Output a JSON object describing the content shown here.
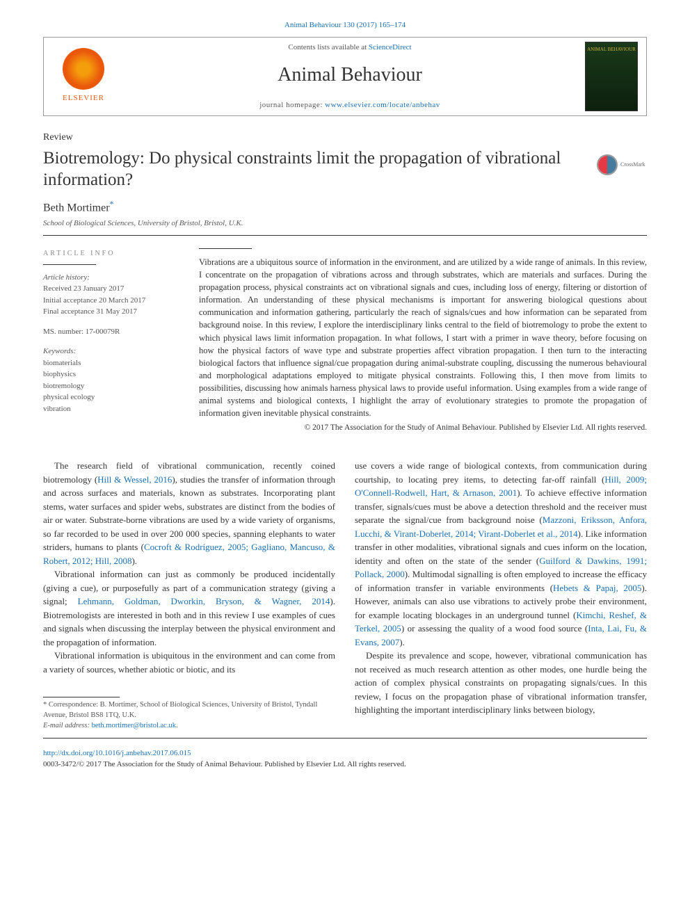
{
  "header": {
    "citation": "Animal Behaviour 130 (2017) 165–174",
    "contents_prefix": "Contents lists available at ",
    "contents_link": "ScienceDirect",
    "journal_name": "Animal Behaviour",
    "homepage_prefix": "journal homepage: ",
    "homepage_link": "www.elsevier.com/locate/anbehav",
    "elsevier": "ELSEVIER",
    "cover_text": "ANIMAL BEHAVIOUR",
    "crossmark": "CrossMark"
  },
  "article": {
    "type": "Review",
    "title": "Biotremology: Do physical constraints limit the propagation of vibrational information?",
    "author": "Beth Mortimer",
    "asterisk": "*",
    "affiliation": "School of Biological Sciences, University of Bristol, Bristol, U.K."
  },
  "info": {
    "heading": "ARTICLE INFO",
    "history_label": "Article history:",
    "received": "Received 23 January 2017",
    "initial": "Initial acceptance 20 March 2017",
    "final": "Final acceptance 31 May 2017",
    "ms": "MS. number: 17-00079R",
    "keywords_label": "Keywords:",
    "keywords": [
      "biomaterials",
      "biophysics",
      "biotremology",
      "physical ecology",
      "vibration"
    ]
  },
  "abstract": {
    "text": "Vibrations are a ubiquitous source of information in the environment, and are utilized by a wide range of animals. In this review, I concentrate on the propagation of vibrations across and through substrates, which are materials and surfaces. During the propagation process, physical constraints act on vibrational signals and cues, including loss of energy, filtering or distortion of information. An understanding of these physical mechanisms is important for answering biological questions about communication and information gathering, particularly the reach of signals/cues and how information can be separated from background noise. In this review, I explore the interdisciplinary links central to the field of biotremology to probe the extent to which physical laws limit information propagation. In what follows, I start with a primer in wave theory, before focusing on how the physical factors of wave type and substrate properties affect vibration propagation. I then turn to the interacting biological factors that influence signal/cue propagation during animal-substrate coupling, discussing the numerous behavioural and morphological adaptations employed to mitigate physical constraints. Following this, I then move from limits to possibilities, discussing how animals harness physical laws to provide useful information. Using examples from a wide range of animal systems and biological contexts, I highlight the array of evolutionary strategies to promote the propagation of information given inevitable physical constraints.",
    "copyright": "© 2017 The Association for the Study of Animal Behaviour. Published by Elsevier Ltd. All rights reserved."
  },
  "body": {
    "col1": {
      "p1_pre": "The research field of vibrational communication, recently coined biotremology (",
      "p1_ref1": "Hill & Wessel, 2016",
      "p1_mid": "), studies the transfer of information through and across surfaces and materials, known as substrates. Incorporating plant stems, water surfaces and spider webs, substrates are distinct from the bodies of air or water. Substrate-borne vibrations are used by a wide variety of organisms, so far recorded to be used in over 200 000 species, spanning elephants to water striders, humans to plants (",
      "p1_ref2": "Cocroft & Rodríguez, 2005; Gagliano, Mancuso, & Robert, 2012; Hill, 2008",
      "p1_end": ").",
      "p2_pre": "Vibrational information can just as commonly be produced incidentally (giving a cue), or purposefully as part of a communication strategy (giving a signal; ",
      "p2_ref1": "Lehmann, Goldman, Dworkin, Bryson, & Wagner, 2014",
      "p2_end": "). Biotremologists are interested in both and in this review I use examples of cues and signals when discussing the interplay between the physical environment and the propagation of information.",
      "p3": "Vibrational information is ubiquitous in the environment and can come from a variety of sources, whether abiotic or biotic, and its"
    },
    "col2": {
      "p1_pre": "use covers a wide range of biological contexts, from communication during courtship, to locating prey items, to detecting far-off rainfall (",
      "p1_ref1": "Hill, 2009; O'Connell-Rodwell, Hart, & Arnason, 2001",
      "p1_mid1": "). To achieve effective information transfer, signals/cues must be above a detection threshold and the receiver must separate the signal/cue from background noise (",
      "p1_ref2": "Mazzoni, Eriksson, Anfora, Lucchi, & Virant-Doberlet, 2014; Virant-Doberlet et al., 2014",
      "p1_mid2": "). Like information transfer in other modalities, vibrational signals and cues inform on the location, identity and often on the state of the sender (",
      "p1_ref3": "Guilford & Dawkins, 1991; Pollack, 2000",
      "p1_mid3": "). Multimodal signalling is often employed to increase the efficacy of information transfer in variable environments (",
      "p1_ref4": "Hebets & Papaj, 2005",
      "p1_mid4": "). However, animals can also use vibrations to actively probe their environment, for example locating blockages in an underground tunnel (",
      "p1_ref5": "Kimchi, Reshef, & Terkel, 2005",
      "p1_mid5": ") or assessing the quality of a wood food source (",
      "p1_ref6": "Inta, Lai, Fu, & Evans, 2007",
      "p1_end": ").",
      "p2": "Despite its prevalence and scope, however, vibrational communication has not received as much research attention as other modes, one hurdle being the action of complex physical constraints on propagating signals/cues. In this review, I focus on the propagation phase of vibrational information transfer, highlighting the important interdisciplinary links between biology,"
    }
  },
  "footnote": {
    "corr": "* Correspondence: B. Mortimer, School of Biological Sciences, University of Bristol, Tyndall Avenue, Bristol BS8 1TQ, U.K.",
    "email_label": "E-mail address: ",
    "email": "beth.mortimer@bristol.ac.uk",
    "period": "."
  },
  "footer": {
    "doi": "http://dx.doi.org/10.1016/j.anbehav.2017.06.015",
    "issn_copy": "0003-3472/© 2017 The Association for the Study of Animal Behaviour. Published by Elsevier Ltd. All rights reserved."
  }
}
